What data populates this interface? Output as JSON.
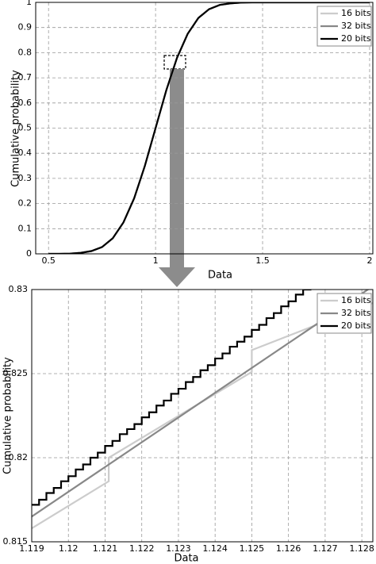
{
  "chart_data": [
    {
      "type": "line",
      "xlabel": "Data",
      "ylabel": "Cumulative probability",
      "x": [
        0.5,
        0.55,
        0.6,
        0.65,
        0.7,
        0.75,
        0.8,
        0.85,
        0.9,
        0.95,
        1.0,
        1.05,
        1.1,
        1.15,
        1.2,
        1.25,
        1.3,
        1.35,
        1.4,
        1.45,
        1.5,
        1.55,
        1.6,
        1.65,
        1.7,
        1.75,
        1.8,
        1.85,
        1.9,
        1.95,
        2.0
      ],
      "series": [
        {
          "name": "16 bits",
          "color": "#cccccc",
          "values": [
            0,
            0,
            0.001,
            0.004,
            0.011,
            0.027,
            0.062,
            0.125,
            0.221,
            0.35,
            0.5,
            0.65,
            0.779,
            0.875,
            0.938,
            0.973,
            0.99,
            0.996,
            0.999,
            1,
            1,
            1,
            1,
            1,
            1,
            1,
            1,
            1,
            1,
            1,
            1
          ]
        },
        {
          "name": "32 bits",
          "color": "#888888",
          "values": [
            0,
            0,
            0.001,
            0.004,
            0.011,
            0.027,
            0.062,
            0.125,
            0.221,
            0.35,
            0.5,
            0.65,
            0.779,
            0.875,
            0.938,
            0.973,
            0.99,
            0.996,
            0.999,
            1,
            1,
            1,
            1,
            1,
            1,
            1,
            1,
            1,
            1,
            1,
            1
          ]
        },
        {
          "name": "20 bits",
          "color": "#000000",
          "values": [
            0,
            0,
            0.001,
            0.004,
            0.011,
            0.027,
            0.062,
            0.125,
            0.221,
            0.35,
            0.5,
            0.65,
            0.779,
            0.875,
            0.938,
            0.973,
            0.99,
            0.996,
            0.999,
            1,
            1,
            1,
            1,
            1,
            1,
            1,
            1,
            1,
            1,
            1,
            1
          ]
        }
      ],
      "xlim": [
        0.44,
        2.015
      ],
      "ylim": [
        0,
        1
      ],
      "xticks": [
        0.5,
        1,
        1.5,
        2
      ],
      "yticks": [
        0,
        0.1,
        0.2,
        0.3,
        0.4,
        0.5,
        0.6,
        0.7,
        0.8,
        0.9,
        1
      ],
      "grid": true,
      "legend": "upper right"
    },
    {
      "type": "line",
      "xlabel": "Data",
      "ylabel": "Cumulative probability",
      "series": [
        {
          "name": "16 bits",
          "color": "#cccccc",
          "x": [
            1.119,
            1.1211,
            1.1211,
            1.125,
            1.125,
            1.1283
          ],
          "values": [
            0.8158,
            0.8186,
            0.82,
            0.8251,
            0.8264,
            0.8292
          ]
        },
        {
          "name": "32 bits",
          "color": "#888888",
          "x": [
            1.119,
            1.1283
          ],
          "values": [
            0.8165,
            0.8302
          ]
        },
        {
          "name": "20 bits",
          "color": "#000000",
          "steps": true,
          "x": [
            1.119,
            1.1192,
            1.1194,
            1.1196,
            1.1198,
            1.12,
            1.1202,
            1.1204,
            1.1206,
            1.1208,
            1.121,
            1.1212,
            1.1214,
            1.1216,
            1.1218,
            1.122,
            1.1222,
            1.1224,
            1.1226,
            1.1228,
            1.123,
            1.1232,
            1.1234,
            1.1236,
            1.1238,
            1.124,
            1.1242,
            1.1244,
            1.1246,
            1.1248,
            1.125,
            1.1252,
            1.1254,
            1.1256,
            1.1258,
            1.126,
            1.1262,
            1.1264,
            1.1266
          ],
          "values": [
            0.8172,
            0.8175,
            0.8179,
            0.8182,
            0.8186,
            0.8189,
            0.8193,
            0.8196,
            0.82,
            0.8203,
            0.8207,
            0.821,
            0.8214,
            0.8217,
            0.822,
            0.8224,
            0.8227,
            0.8231,
            0.8234,
            0.8238,
            0.8241,
            0.8245,
            0.8248,
            0.8252,
            0.8255,
            0.8259,
            0.8262,
            0.8266,
            0.8269,
            0.8272,
            0.8276,
            0.8279,
            0.8283,
            0.8286,
            0.829,
            0.8293,
            0.8297,
            0.83,
            0.8303
          ]
        }
      ],
      "xlim": [
        1.119,
        1.1283
      ],
      "ylim": [
        0.815,
        0.83
      ],
      "xticks": [
        1.119,
        1.12,
        1.121,
        1.122,
        1.123,
        1.124,
        1.125,
        1.126,
        1.127,
        1.128
      ],
      "yticks": [
        0.815,
        0.82,
        0.825,
        0.83
      ],
      "grid": true,
      "legend": "upper right"
    }
  ]
}
